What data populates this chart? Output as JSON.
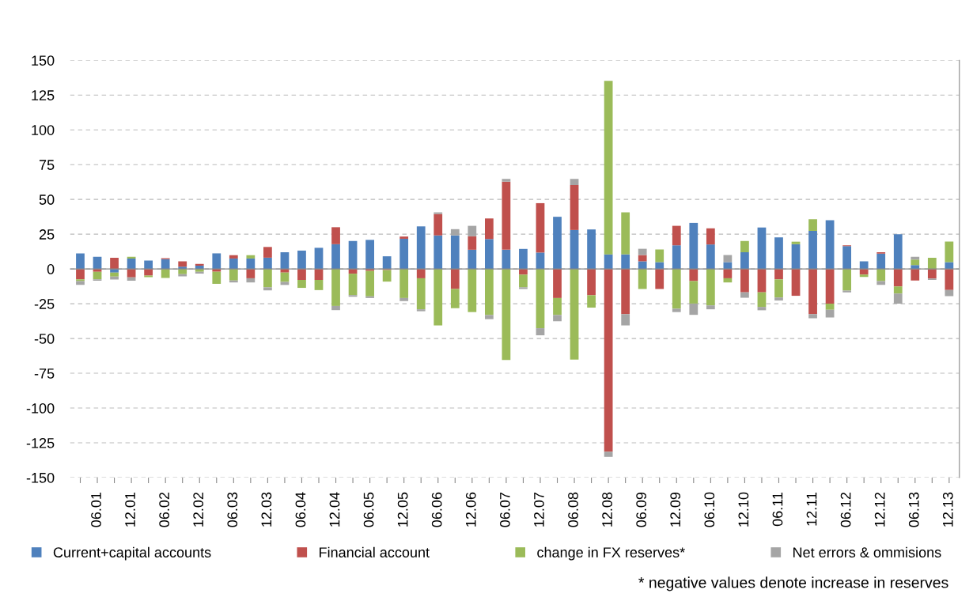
{
  "chart_data": {
    "type": "bar",
    "stacked": true,
    "categories": [
      null,
      "06.01",
      null,
      "12.01",
      null,
      "06.02",
      null,
      "12.02",
      null,
      "06.03",
      null,
      "12.03",
      null,
      "06.04",
      null,
      "12.04",
      null,
      "06.05",
      null,
      "12.05",
      null,
      "06.06",
      null,
      "12.06",
      null,
      "06.07",
      null,
      "12.07",
      null,
      "06.08",
      null,
      "12.08",
      null,
      "06.09",
      null,
      "12.09",
      null,
      "06.10",
      null,
      "12.10",
      null,
      "06.11",
      null,
      "12.11",
      null,
      "06.12",
      null,
      "12.12",
      null,
      "06.13",
      null,
      "12.13"
    ],
    "series": [
      {
        "name": "Current+capital accounts",
        "color": "#4f81bd",
        "values": [
          11.2,
          8.7,
          -2.6,
          7.5,
          6.1,
          7.1,
          1.6,
          2.4,
          11.2,
          7.5,
          7.5,
          8.1,
          12,
          13.2,
          15.2,
          17.8,
          20.1,
          20.9,
          9.1,
          21.7,
          30.6,
          24.1,
          24.1,
          13.8,
          21.5,
          13.8,
          14.4,
          11.8,
          37.5,
          28,
          28.4,
          10.5,
          10.5,
          5.5,
          4.9,
          17,
          33.1,
          17.6,
          4.9,
          12,
          29.8,
          22.7,
          17.8,
          27.4,
          35.1,
          16.4,
          5.5,
          11,
          24.9,
          2.8,
          null,
          4.9
        ]
      },
      {
        "name": "Financial account",
        "color": "#c0504d",
        "values": [
          -7.5,
          -2,
          8.1,
          -6,
          -4.7,
          0.6,
          3.9,
          1.2,
          -2,
          2.4,
          -6.7,
          7.7,
          -2.6,
          -7.9,
          -7.9,
          12.2,
          -3.4,
          -1.4,
          -0.8,
          1.6,
          -6.7,
          15.4,
          -14.4,
          9.7,
          14.8,
          48.9,
          -4.1,
          35.5,
          -20.9,
          32.3,
          -18.9,
          -131.4,
          -32.5,
          4.5,
          -14.4,
          14,
          -8.7,
          11.6,
          -6.7,
          -16.8,
          -16.8,
          -7.5,
          -19.3,
          -32.5,
          -24.9,
          0.6,
          -4.1,
          1,
          -12.6,
          -8.3,
          -6.9,
          -15.2
        ]
      },
      {
        "name": "change in FX reserves*",
        "color": "#9bbb59",
        "values": [
          -1.2,
          -5.5,
          -2.8,
          1.2,
          -1.2,
          -6.5,
          -3.7,
          -2,
          -8.7,
          -8.3,
          2.4,
          -13.2,
          -6.7,
          -5.7,
          -7.3,
          -26.6,
          -15.4,
          -18.3,
          -8.3,
          -20.9,
          -22.3,
          -40.6,
          -13.8,
          -31,
          -33.1,
          -65.5,
          -9.1,
          -42.6,
          -12.2,
          -65.1,
          -8.9,
          124.7,
          30.2,
          -14.4,
          9.1,
          -28.6,
          -16.2,
          -26.2,
          -3,
          8.1,
          -10.5,
          -13,
          1.8,
          8.3,
          -4.5,
          -15.6,
          -1.6,
          -8.7,
          -5.1,
          3.9,
          8.1,
          14.8
        ]
      },
      {
        "name": "Net errors & ommisions",
        "color": "#a5a5a5",
        "values": [
          -2.8,
          -1,
          -2.2,
          -2.4,
          null,
          null,
          -1.6,
          -1.4,
          null,
          -1.4,
          -3,
          -2.2,
          -2.2,
          null,
          null,
          -3,
          -1.2,
          -1.2,
          null,
          -2.2,
          -1.4,
          1.2,
          4.5,
          7.5,
          -3,
          2,
          -1.2,
          -5.1,
          -4.5,
          4.5,
          null,
          -3.7,
          -8.1,
          4.5,
          null,
          -2.4,
          -8.1,
          -2.8,
          5.1,
          -3.9,
          -2.4,
          -2.2,
          null,
          -3,
          -5.5,
          -1.2,
          null,
          -2.8,
          -7.3,
          2,
          -1,
          -4.3
        ]
      }
    ],
    "ylim": [
      -150,
      150
    ],
    "yticks": [
      -150,
      -125,
      -100,
      -75,
      -50,
      -25,
      0,
      25,
      50,
      75,
      100,
      125,
      150
    ],
    "grid": "y",
    "legend": "bottom",
    "annotations": [
      "* negative values denote increase in reserves"
    ]
  }
}
